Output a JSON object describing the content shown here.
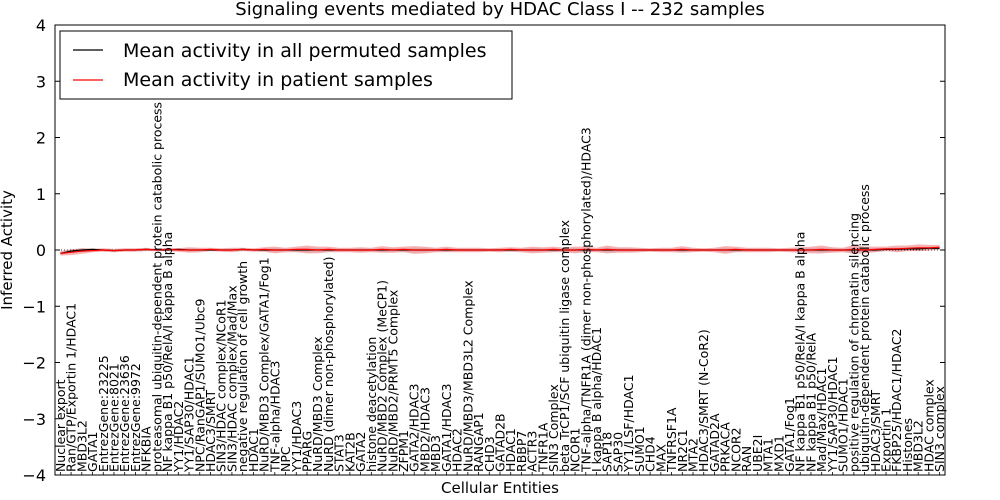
{
  "chart_data": {
    "type": "line",
    "title": "Signaling events mediated by HDAC Class I -- 232 samples",
    "xlabel": "Cellular Entities",
    "ylabel": "Inferred Activity",
    "ylim": [
      -4,
      4
    ],
    "yticks": [
      -4,
      -3,
      -2,
      -1,
      0,
      1,
      2,
      3,
      4
    ],
    "ytick_labels": [
      "−4",
      "−3",
      "−2",
      "−1",
      "0",
      "1",
      "2",
      "3",
      "4"
    ],
    "legend_position": "top-left",
    "categories": [
      "Nuclear export",
      "Ran/GTP/Exportin 1/HDAC1",
      "MBD3L2",
      "GATA1",
      "EntrezGene:23225",
      "EntrezGene:8021",
      "EntrezGene:23636",
      "EntrezGene:9972",
      "NFKBIA",
      "proteasomal ubiquitin-dependent protein catabolic process",
      "NF kappa B1 p50/RelA/I kappa B alpha",
      "YY1/HDAC2",
      "YY1/SAP30/HDAC1",
      "NPC/RanGAP1/SUMO1/Ubc9",
      "HDAC3/SMRT",
      "SIN3/HDAC complex/NCoR1",
      "SIN3/HDAC complex/Mad/Max",
      "negative regulation of cell growth",
      "HDAC1",
      "NuRD/MBD3 Complex/GATA1/Fog1",
      "TNF-alpha/HDAC3",
      "NPC",
      "YY1/HDAC3",
      "PPARG",
      "NuRD/MBD3 Complex",
      "NuRD (dimer non-phosphorylated)",
      "STAT3",
      "KAT2B",
      "GATA2",
      "histone deacetylation",
      "NuRD/MBD2 Complex (MeCP1)",
      "NuRD/MBD2/PRMT5 Complex",
      "ZFPM1",
      "GATA2/HDAC3",
      "MBD2/HDAC3",
      "MBD3",
      "GATA1/HDAC3",
      "HDAC2",
      "NuRD/MBD3/MBD3L2 Complex",
      "RANGAP1",
      "CHD3",
      "GATAD2B",
      "HDAC1",
      "RBBP7",
      "ACTR3",
      "TNFR1A",
      "SIN3 Complex",
      "beta TrCP1/SCF ubiquitin ligase complex",
      "NCOR1",
      "TNF-alpha/TNFR1A (dimer non-phosphorylated)/HDAC3",
      "I kappa B alpha/HDAC1",
      "SAP18",
      "SAP30",
      "YY1/LSF/HDAC1",
      "SUMO1",
      "CHD4",
      "MAX",
      "TNFRSF1A",
      "NR2C1",
      "MTA2",
      "HDAC3/SMRT (N-CoR2)",
      "GATAD2A",
      "PRKACA",
      "NCOR2",
      "RAN",
      "UBE2I",
      "MTA1",
      "MXD1",
      "GATA1/Fog1",
      "NF kappa B1 p50/RelA/I kappa B alpha",
      "NF kappa B1 p50/RelA",
      "Mad/Max/HDAC1",
      "YY1/SAP30/HDAC1",
      "SUMO1/HDAC1",
      "positive regulation of chromatin silencing",
      "ubiquitin-dependent protein catabolic process",
      "HDAC3/SMRT",
      "Exportin 1",
      "FKBP25/HDAC1/HDAC2",
      "Histones",
      "MBD3L2",
      "HDAC complex",
      "SIN3 complex"
    ],
    "series": [
      {
        "name": "Mean activity in all permuted samples",
        "color": "#000000",
        "values": [
          -0.06,
          -0.02,
          0.0,
          0.01,
          0.0,
          -0.01,
          0.0,
          0.0,
          0.01,
          0.0,
          0.0,
          0.01,
          0.0,
          0.0,
          0.0,
          0.0,
          0.0,
          0.01,
          0.0,
          0.0,
          0.0,
          0.0,
          0.0,
          0.0,
          0.0,
          0.0,
          0.0,
          0.0,
          0.0,
          0.0,
          0.0,
          0.0,
          0.0,
          0.0,
          0.0,
          0.0,
          0.0,
          0.0,
          0.0,
          0.0,
          0.0,
          0.0,
          0.0,
          0.0,
          0.0,
          0.0,
          0.0,
          0.0,
          0.0,
          0.0,
          0.0,
          0.0,
          0.0,
          0.0,
          0.0,
          0.0,
          0.0,
          0.0,
          0.0,
          0.0,
          0.0,
          0.0,
          0.0,
          0.0,
          0.0,
          0.0,
          0.0,
          0.0,
          0.0,
          0.0,
          0.0,
          0.0,
          0.0,
          0.0,
          0.0,
          0.0,
          0.0,
          0.01,
          0.01,
          0.02,
          0.02,
          0.03,
          0.03
        ]
      },
      {
        "name": "Mean activity in patient samples",
        "color": "#ff0000",
        "values": [
          -0.06,
          -0.04,
          -0.02,
          -0.01,
          0.0,
          -0.01,
          0.0,
          0.0,
          0.01,
          0.0,
          0.01,
          0.0,
          0.0,
          0.0,
          0.01,
          0.0,
          0.0,
          0.01,
          0.0,
          0.01,
          0.0,
          0.0,
          0.01,
          0.01,
          0.0,
          0.01,
          0.0,
          0.0,
          0.0,
          0.0,
          0.01,
          0.0,
          0.01,
          0.0,
          0.0,
          0.0,
          0.01,
          0.0,
          0.0,
          0.0,
          0.0,
          0.0,
          0.01,
          0.0,
          0.0,
          0.0,
          0.01,
          0.0,
          0.0,
          0.01,
          0.0,
          0.01,
          0.0,
          0.0,
          0.0,
          0.0,
          0.0,
          0.0,
          0.01,
          0.0,
          0.0,
          0.0,
          0.0,
          0.01,
          0.0,
          0.0,
          0.0,
          0.0,
          0.0,
          0.0,
          0.0,
          0.01,
          0.0,
          0.0,
          0.01,
          0.0,
          0.01,
          0.02,
          0.02,
          0.03,
          0.04,
          0.04,
          0.05
        ]
      }
    ],
    "band_halfwidths": [
      0.04,
      0.05,
      0.05,
      0.03,
      0.03,
      0.03,
      0.03,
      0.03,
      0.03,
      0.02,
      0.03,
      0.03,
      0.05,
      0.04,
      0.03,
      0.03,
      0.04,
      0.03,
      0.03,
      0.04,
      0.06,
      0.04,
      0.05,
      0.07,
      0.06,
      0.05,
      0.04,
      0.04,
      0.05,
      0.04,
      0.06,
      0.05,
      0.05,
      0.07,
      0.06,
      0.04,
      0.05,
      0.04,
      0.04,
      0.04,
      0.03,
      0.04,
      0.04,
      0.04,
      0.06,
      0.05,
      0.05,
      0.04,
      0.06,
      0.05,
      0.04,
      0.07,
      0.05,
      0.05,
      0.04,
      0.03,
      0.04,
      0.04,
      0.06,
      0.04,
      0.03,
      0.04,
      0.07,
      0.05,
      0.04,
      0.04,
      0.04,
      0.03,
      0.04,
      0.05,
      0.06,
      0.07,
      0.05,
      0.04,
      0.08,
      0.06,
      0.05,
      0.04,
      0.06,
      0.05,
      0.06,
      0.05,
      0.04
    ]
  }
}
